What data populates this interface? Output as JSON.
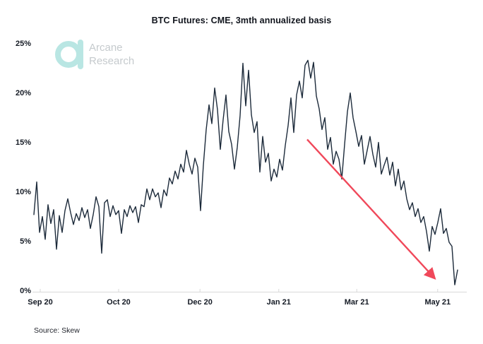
{
  "chart": {
    "title": "BTC Futures: CME, 3mth annualized basis",
    "source": "Source: Skew"
  },
  "logo": {
    "name": "arcane-research-logo",
    "line1": "Arcane",
    "line2": "Research",
    "glyph_color": "#b9e6e3",
    "text_color": "#c5cacd"
  },
  "colors": {
    "line": "#1c2a3a",
    "arrow": "#f0485a",
    "axis": "#d9d9d9",
    "label_text": "#141a24",
    "background": "#ffffff"
  },
  "chart_data": {
    "type": "line",
    "title": "BTC Futures: CME, 3mth annualized basis",
    "series_name": "CME BTC futures 3mth annualized basis",
    "unit": "%",
    "ylim": [
      0,
      25
    ],
    "y_ticks": [
      0,
      5,
      10,
      15,
      20,
      25
    ],
    "y_tick_labels": [
      "0%",
      "5%",
      "10%",
      "15%",
      "20%",
      "25%"
    ],
    "grid": "off",
    "legend": "none",
    "x_ticks": [
      {
        "label": "Sep 20",
        "pos": 0.015
      },
      {
        "label": "Oct 20",
        "pos": 0.2
      },
      {
        "label": "Dec 20",
        "pos": 0.392
      },
      {
        "label": "Jan 21",
        "pos": 0.578
      },
      {
        "label": "Mar 21",
        "pos": 0.762
      },
      {
        "label": "May 21",
        "pos": 0.953
      }
    ],
    "x_spacing": "uniform",
    "values": [
      7.8,
      11.1,
      6.0,
      7.6,
      5.3,
      8.8,
      6.9,
      8.3,
      4.3,
      7.7,
      6.0,
      8.2,
      9.4,
      8.0,
      6.8,
      7.9,
      7.2,
      8.5,
      7.5,
      8.3,
      6.4,
      7.8,
      9.6,
      8.6,
      3.9,
      9.0,
      9.3,
      7.6,
      8.7,
      7.8,
      8.2,
      5.9,
      8.3,
      7.6,
      8.7,
      8.0,
      8.6,
      7.0,
      8.8,
      8.6,
      10.4,
      9.3,
      10.4,
      9.6,
      10.0,
      8.5,
      10.3,
      9.7,
      11.5,
      10.9,
      12.2,
      11.4,
      12.9,
      12.1,
      14.3,
      12.9,
      11.9,
      13.5,
      12.6,
      8.2,
      12.8,
      16.4,
      18.9,
      17.0,
      20.6,
      18.4,
      14.4,
      17.4,
      19.9,
      16.2,
      14.9,
      12.4,
      14.6,
      17.8,
      23.1,
      18.8,
      22.4,
      17.9,
      16.1,
      17.2,
      12.1,
      15.7,
      13.1,
      14.0,
      11.2,
      12.4,
      11.6,
      13.4,
      12.3,
      14.8,
      16.8,
      19.6,
      16.1,
      19.9,
      21.3,
      19.6,
      22.9,
      23.4,
      21.6,
      23.2,
      19.8,
      18.5,
      16.4,
      17.6,
      14.4,
      15.6,
      12.9,
      14.2,
      13.4,
      11.4,
      14.9,
      18.2,
      20.1,
      17.6,
      16.2,
      14.7,
      15.8,
      12.9,
      14.3,
      15.7,
      13.9,
      12.6,
      15.1,
      11.9,
      12.8,
      13.6,
      11.8,
      13.1,
      10.7,
      12.4,
      10.3,
      11.2,
      9.4,
      8.3,
      9.0,
      7.6,
      8.4,
      7.0,
      7.6,
      6.1,
      4.1,
      6.6,
      5.8,
      7.0,
      8.4,
      5.9,
      6.4,
      5.0,
      4.6,
      0.7,
      2.2
    ],
    "annotation_arrow": {
      "meaning": "declining basis trend",
      "from": {
        "pos": 0.645,
        "value": 15.4
      },
      "to": {
        "pos": 0.945,
        "value": 1.4
      },
      "color": "#f0485a"
    }
  }
}
